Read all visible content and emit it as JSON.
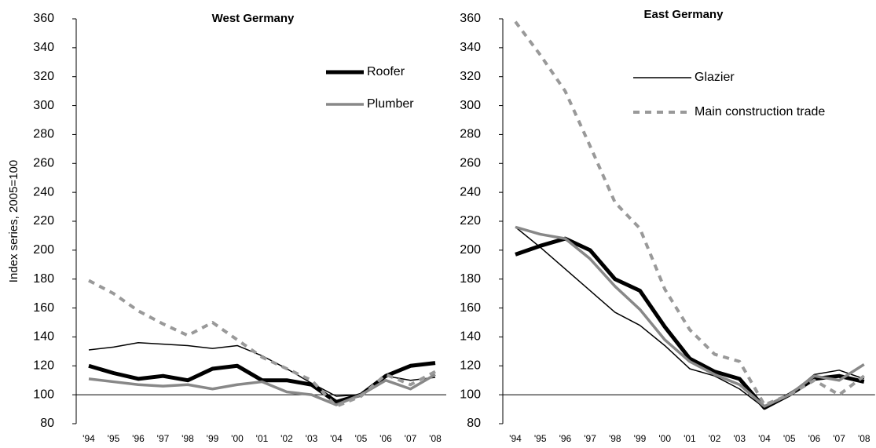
{
  "chart_data": [
    {
      "type": "line",
      "title": "West Germany",
      "ylabel": "Index series, 2005=100",
      "categories": [
        "'94",
        "'95",
        "'96",
        "'97",
        "'98",
        "'99",
        "'00",
        "'01",
        "'02",
        "'03",
        "'04",
        "'05",
        "'06",
        "'07",
        "'08"
      ],
      "ylim": [
        80,
        360
      ],
      "yticks": [
        80,
        100,
        120,
        140,
        160,
        180,
        200,
        220,
        240,
        260,
        280,
        300,
        320,
        340,
        360
      ],
      "baseline": 100,
      "series": [
        {
          "name": "Roofer",
          "color": "#000000",
          "line_style": "thick",
          "values": [
            120,
            115,
            111,
            113,
            110,
            118,
            120,
            110,
            110,
            107,
            95,
            100,
            113,
            120,
            122
          ]
        },
        {
          "color": "#000000",
          "line_style": "thin",
          "values": [
            131,
            133,
            136,
            135,
            134,
            132,
            134,
            127,
            118,
            108,
            99,
            100,
            113,
            110,
            112
          ]
        },
        {
          "name": "Plumber",
          "color": "#888888",
          "line_style": "medium",
          "values": [
            111,
            109,
            107,
            106,
            107,
            104,
            107,
            109,
            102,
            100,
            93,
            100,
            110,
            104,
            114
          ]
        },
        {
          "color": "#999999",
          "line_style": "dashed",
          "values": [
            179,
            170,
            158,
            149,
            141,
            150,
            138,
            126,
            118,
            110,
            92,
            99,
            114,
            107,
            116
          ]
        }
      ]
    },
    {
      "type": "line",
      "title": "East Germany",
      "categories": [
        "'94",
        "'95",
        "'96",
        "'97",
        "'98",
        "'99",
        "'00",
        "'01",
        "'02",
        "'03",
        "'04",
        "'05",
        "'06",
        "'07",
        "'08"
      ],
      "ylim": [
        80,
        360
      ],
      "yticks": [
        80,
        100,
        120,
        140,
        160,
        180,
        200,
        220,
        240,
        260,
        280,
        300,
        320,
        340,
        360
      ],
      "baseline": 100,
      "series": [
        {
          "color": "#000000",
          "line_style": "thick",
          "values": [
            197,
            203,
            208,
            200,
            180,
            172,
            147,
            125,
            116,
            111,
            91,
            100,
            111,
            113,
            109
          ]
        },
        {
          "name": "Glazier",
          "color": "#000000",
          "line_style": "thin",
          "values": [
            216,
            202,
            187,
            172,
            157,
            148,
            134,
            118,
            113,
            104,
            91,
            100,
            114,
            117,
            111
          ]
        },
        {
          "color": "#888888",
          "line_style": "medium",
          "values": [
            216,
            211,
            208,
            194,
            175,
            159,
            138,
            123,
            114,
            107,
            92,
            100,
            113,
            110,
            121
          ]
        },
        {
          "name": "Main construction trade",
          "color": "#999999",
          "line_style": "dashed",
          "values": [
            358,
            335,
            310,
            272,
            233,
            215,
            173,
            145,
            128,
            123,
            93,
            100,
            110,
            100,
            113
          ]
        }
      ]
    }
  ]
}
